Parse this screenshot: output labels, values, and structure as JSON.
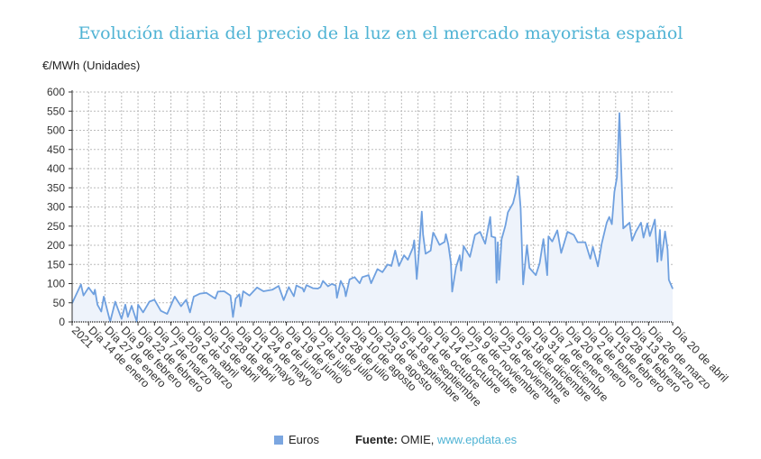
{
  "chart_data": {
    "type": "area",
    "title": "Evolución diaria del precio de la luz en el mercado mayorista español",
    "ylabel": "€/MWh (Unidades)",
    "xlabel": "",
    "ylim": [
      0,
      600
    ],
    "yticks": [
      0,
      50,
      100,
      150,
      200,
      250,
      300,
      350,
      400,
      450,
      500,
      550,
      600
    ],
    "grid": true,
    "legend_placement": "bottom",
    "x_tick_days": [
      0,
      13,
      26,
      39,
      52,
      65,
      78,
      91,
      104,
      117,
      130,
      143,
      156,
      169,
      182,
      195,
      208,
      221,
      234,
      247,
      260,
      273,
      286,
      299,
      312,
      325,
      338,
      351,
      364,
      377,
      390,
      403,
      416,
      429,
      442,
      455,
      474
    ],
    "x_tick_labels": [
      "2021",
      "Día 14 de enero",
      "Día 27 de enero",
      "Día 9 de febrero",
      "Día 22 de febrero",
      "Día 7 de marzo",
      "Día 20 de marzo",
      "Día 2 de abril",
      "Día 15 de abril",
      "Día 28 de abril",
      "Día 11 de mayo",
      "Día 24 de mayo",
      "Día 6 de junio",
      "Día 19 de junio",
      "Día 2 de julio",
      "Día 15 de julio",
      "Día 28 de julio",
      "Día 10 de agosto",
      "Día 23 de agosto",
      "Día 5 de septiembre",
      "Día 18 de septiembre",
      "Día 1 de octubre",
      "Día 14 de octubre",
      "Día 27 de octubre",
      "Día 9 de noviembre",
      "Día 22 de noviembre",
      "Día 5 de diciembre",
      "Día 18 de diciembre",
      "Día 31 de diciembre",
      "Día 7 de enero",
      "Día 20 de enero",
      "Día 2 de febrero",
      "Día 15 de febrero",
      "Día 28 de febrero",
      "Día 13 de marzo",
      "Día 26 de marzo",
      "Día 20 de abril"
    ],
    "x_range_days": [
      0,
      474
    ],
    "series": [
      {
        "name": "Euros",
        "color": "#6fa0df",
        "points": [
          [
            0,
            49
          ],
          [
            7,
            98
          ],
          [
            9,
            69
          ],
          [
            13,
            90
          ],
          [
            17,
            72
          ],
          [
            18,
            84
          ],
          [
            20,
            45
          ],
          [
            23,
            27
          ],
          [
            25,
            66
          ],
          [
            30,
            1
          ],
          [
            34,
            53
          ],
          [
            39,
            8
          ],
          [
            42,
            45
          ],
          [
            44,
            13
          ],
          [
            47,
            42
          ],
          [
            51,
            1
          ],
          [
            52,
            45
          ],
          [
            56,
            25
          ],
          [
            61,
            53
          ],
          [
            65,
            58
          ],
          [
            70,
            29
          ],
          [
            75,
            21
          ],
          [
            81,
            66
          ],
          [
            86,
            41
          ],
          [
            90,
            58
          ],
          [
            93,
            25
          ],
          [
            96,
            66
          ],
          [
            101,
            74
          ],
          [
            106,
            76
          ],
          [
            113,
            61
          ],
          [
            115,
            79
          ],
          [
            120,
            80
          ],
          [
            125,
            69
          ],
          [
            127,
            13
          ],
          [
            129,
            61
          ],
          [
            132,
            72
          ],
          [
            133,
            41
          ],
          [
            135,
            80
          ],
          [
            140,
            69
          ],
          [
            146,
            90
          ],
          [
            151,
            80
          ],
          [
            158,
            84
          ],
          [
            163,
            94
          ],
          [
            167,
            57
          ],
          [
            171,
            91
          ],
          [
            175,
            67
          ],
          [
            177,
            95
          ],
          [
            182,
            87
          ],
          [
            183,
            79
          ],
          [
            185,
            96
          ],
          [
            190,
            88
          ],
          [
            194,
            87
          ],
          [
            196,
            91
          ],
          [
            198,
            107
          ],
          [
            202,
            93
          ],
          [
            205,
            99
          ],
          [
            208,
            95
          ],
          [
            209,
            63
          ],
          [
            212,
            107
          ],
          [
            215,
            87
          ],
          [
            216,
            67
          ],
          [
            219,
            111
          ],
          [
            223,
            117
          ],
          [
            227,
            101
          ],
          [
            229,
            117
          ],
          [
            234,
            122
          ],
          [
            236,
            101
          ],
          [
            241,
            138
          ],
          [
            245,
            130
          ],
          [
            249,
            150
          ],
          [
            252,
            146
          ],
          [
            255,
            186
          ],
          [
            258,
            146
          ],
          [
            262,
            174
          ],
          [
            265,
            162
          ],
          [
            269,
            194
          ],
          [
            270,
            213
          ],
          [
            272,
            112
          ],
          [
            274,
            194
          ],
          [
            276,
            288
          ],
          [
            277,
            229
          ],
          [
            279,
            178
          ],
          [
            283,
            186
          ],
          [
            285,
            233
          ],
          [
            287,
            221
          ],
          [
            290,
            201
          ],
          [
            294,
            209
          ],
          [
            295,
            229
          ],
          [
            297,
            201
          ],
          [
            299,
            154
          ],
          [
            300,
            79
          ],
          [
            303,
            142
          ],
          [
            306,
            174
          ],
          [
            307,
            134
          ],
          [
            309,
            198
          ],
          [
            314,
            170
          ],
          [
            318,
            227
          ],
          [
            322,
            235
          ],
          [
            326,
            204
          ],
          [
            330,
            274
          ],
          [
            331,
            223
          ],
          [
            334,
            220
          ],
          [
            335,
            102
          ],
          [
            336,
            208
          ],
          [
            337,
            110
          ],
          [
            339,
            216
          ],
          [
            342,
            251
          ],
          [
            344,
            286
          ],
          [
            348,
            310
          ],
          [
            350,
            337
          ],
          [
            352,
            380
          ],
          [
            354,
            298
          ],
          [
            356,
            98
          ],
          [
            359,
            200
          ],
          [
            361,
            141
          ],
          [
            366,
            122
          ],
          [
            369,
            153
          ],
          [
            372,
            216
          ],
          [
            375,
            122
          ],
          [
            376,
            223
          ],
          [
            379,
            210
          ],
          [
            383,
            239
          ],
          [
            386,
            180
          ],
          [
            391,
            235
          ],
          [
            396,
            227
          ],
          [
            399,
            208
          ],
          [
            405,
            208
          ],
          [
            409,
            165
          ],
          [
            411,
            196
          ],
          [
            415,
            145
          ],
          [
            418,
            204
          ],
          [
            422,
            259
          ],
          [
            424,
            274
          ],
          [
            426,
            255
          ],
          [
            428,
            339
          ],
          [
            430,
            377
          ],
          [
            432,
            545
          ],
          [
            435,
            244
          ],
          [
            440,
            259
          ],
          [
            442,
            212
          ],
          [
            445,
            236
          ],
          [
            449,
            259
          ],
          [
            451,
            220
          ],
          [
            454,
            257
          ],
          [
            456,
            224
          ],
          [
            460,
            267
          ],
          [
            462,
            157
          ],
          [
            464,
            240
          ],
          [
            465,
            161
          ],
          [
            468,
            236
          ],
          [
            470,
            189
          ],
          [
            471,
            110
          ],
          [
            474,
            87
          ]
        ]
      }
    ]
  },
  "legend": {
    "series_label": "Euros"
  },
  "footer": {
    "source_label": "Fuente:",
    "source_value": "OMIE,",
    "link": "www.epdata.es"
  }
}
